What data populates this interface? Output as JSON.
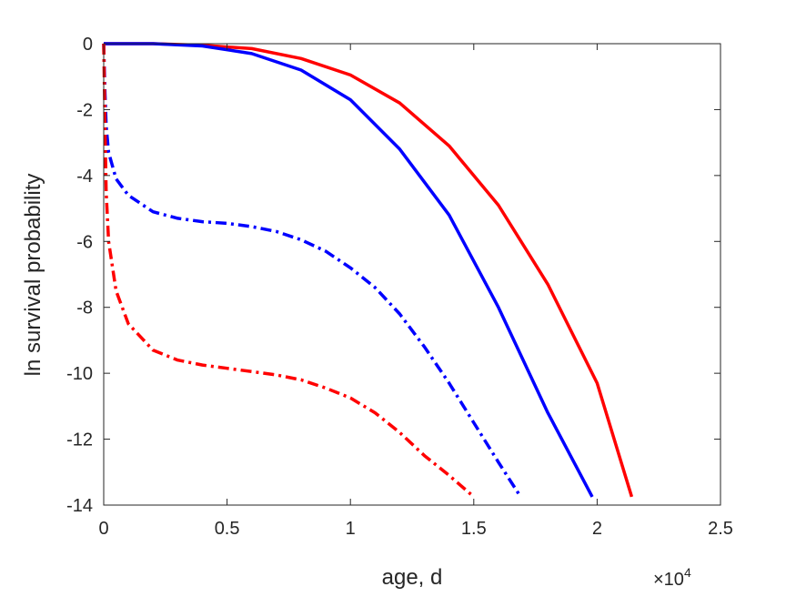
{
  "chart_data": {
    "type": "line",
    "xlabel": "age, d",
    "ylabel": "ln survival probability",
    "x_exponent_label": "×10",
    "x_exponent_power": "4",
    "xlim": [
      0,
      2.5
    ],
    "ylim": [
      -14,
      0
    ],
    "x_ticks": [
      0,
      0.5,
      1,
      1.5,
      2,
      2.5
    ],
    "x_tick_labels": [
      "0",
      "0.5",
      "1",
      "1.5",
      "2",
      "2.5"
    ],
    "y_ticks": [
      0,
      -2,
      -4,
      -6,
      -8,
      -10,
      -12,
      -14
    ],
    "y_tick_labels": [
      "0",
      "-2",
      "-4",
      "-6",
      "-8",
      "-10",
      "-12",
      "-14"
    ],
    "grid": false,
    "series": [
      {
        "color": "#ff0000",
        "style": "solid",
        "points": [
          [
            0.0,
            0.0
          ],
          [
            0.2,
            0.0
          ],
          [
            0.4,
            -0.05
          ],
          [
            0.6,
            -0.15
          ],
          [
            0.8,
            -0.45
          ],
          [
            1.0,
            -0.95
          ],
          [
            1.2,
            -1.8
          ],
          [
            1.4,
            -3.1
          ],
          [
            1.6,
            -4.9
          ],
          [
            1.8,
            -7.3
          ],
          [
            2.0,
            -10.3
          ],
          [
            2.14,
            -13.75
          ]
        ]
      },
      {
        "color": "#0000ff",
        "style": "solid",
        "points": [
          [
            0.0,
            0.0
          ],
          [
            0.2,
            0.0
          ],
          [
            0.4,
            -0.07
          ],
          [
            0.6,
            -0.3
          ],
          [
            0.8,
            -0.8
          ],
          [
            1.0,
            -1.7
          ],
          [
            1.2,
            -3.2
          ],
          [
            1.4,
            -5.2
          ],
          [
            1.6,
            -8.0
          ],
          [
            1.8,
            -11.2
          ],
          [
            1.98,
            -13.75
          ]
        ]
      },
      {
        "color": "#0000ff",
        "style": "dashdot",
        "points": [
          [
            0.0,
            0.0
          ],
          [
            0.005,
            -1.5
          ],
          [
            0.01,
            -2.5
          ],
          [
            0.02,
            -3.3
          ],
          [
            0.05,
            -4.1
          ],
          [
            0.1,
            -4.6
          ],
          [
            0.2,
            -5.1
          ],
          [
            0.3,
            -5.3
          ],
          [
            0.4,
            -5.4
          ],
          [
            0.5,
            -5.45
          ],
          [
            0.6,
            -5.55
          ],
          [
            0.7,
            -5.7
          ],
          [
            0.8,
            -5.95
          ],
          [
            0.9,
            -6.3
          ],
          [
            1.0,
            -6.8
          ],
          [
            1.1,
            -7.4
          ],
          [
            1.2,
            -8.2
          ],
          [
            1.3,
            -9.2
          ],
          [
            1.4,
            -10.3
          ],
          [
            1.5,
            -11.5
          ],
          [
            1.6,
            -12.7
          ],
          [
            1.69,
            -13.75
          ]
        ]
      },
      {
        "color": "#ff0000",
        "style": "dashdot",
        "points": [
          [
            0.0,
            0.0
          ],
          [
            0.005,
            -2.5
          ],
          [
            0.01,
            -4.5
          ],
          [
            0.02,
            -6.0
          ],
          [
            0.05,
            -7.5
          ],
          [
            0.1,
            -8.5
          ],
          [
            0.2,
            -9.3
          ],
          [
            0.3,
            -9.6
          ],
          [
            0.4,
            -9.75
          ],
          [
            0.5,
            -9.85
          ],
          [
            0.6,
            -9.95
          ],
          [
            0.7,
            -10.05
          ],
          [
            0.8,
            -10.2
          ],
          [
            0.9,
            -10.45
          ],
          [
            1.0,
            -10.75
          ],
          [
            1.1,
            -11.2
          ],
          [
            1.2,
            -11.8
          ],
          [
            1.3,
            -12.5
          ],
          [
            1.4,
            -13.1
          ],
          [
            1.5,
            -13.75
          ]
        ]
      }
    ]
  }
}
